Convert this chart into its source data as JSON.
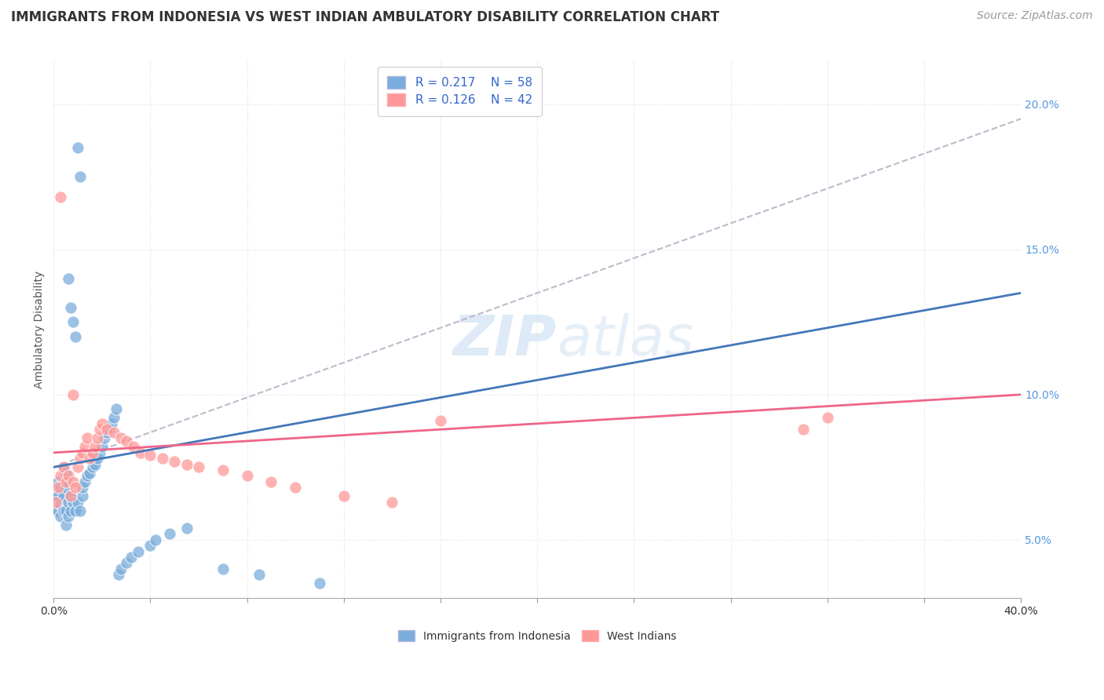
{
  "title": "IMMIGRANTS FROM INDONESIA VS WEST INDIAN AMBULATORY DISABILITY CORRELATION CHART",
  "source": "Source: ZipAtlas.com",
  "ylabel": "Ambulatory Disability",
  "xlabel": "",
  "xlim": [
    0.0,
    0.4
  ],
  "ylim": [
    0.03,
    0.215
  ],
  "xticks": [
    0.0,
    0.04,
    0.08,
    0.12,
    0.16,
    0.2,
    0.24,
    0.28,
    0.32,
    0.36,
    0.4
  ],
  "yticks_right": [
    0.05,
    0.1,
    0.15,
    0.2
  ],
  "ytick_labels_right": [
    "5.0%",
    "10.0%",
    "15.0%",
    "20.0%"
  ],
  "legend_R1": "R = 0.217",
  "legend_N1": "N = 58",
  "legend_R2": "R = 0.126",
  "legend_N2": "N = 42",
  "color_indonesia": "#7AACDC",
  "color_westindian": "#FF9999",
  "color_trendline_indonesia": "#4477BB",
  "color_trendline_westindian": "#EE6688",
  "color_trendline_gray": "#BBBBCC",
  "watermark_color": "#C8DDF0",
  "background_color": "#FFFFFF",
  "grid_color": "#DDDDDD",
  "title_fontsize": 12,
  "axis_label_fontsize": 10,
  "tick_fontsize": 10,
  "legend_fontsize": 11,
  "source_fontsize": 10,
  "indonesia_x": [
    0.001,
    0.001,
    0.002,
    0.002,
    0.002,
    0.003,
    0.003,
    0.003,
    0.004,
    0.004,
    0.004,
    0.004,
    0.005,
    0.005,
    0.005,
    0.005,
    0.006,
    0.006,
    0.006,
    0.007,
    0.007,
    0.007,
    0.008,
    0.008,
    0.009,
    0.009,
    0.01,
    0.01,
    0.011,
    0.011,
    0.012,
    0.012,
    0.013,
    0.014,
    0.015,
    0.016,
    0.017,
    0.018,
    0.019,
    0.02,
    0.021,
    0.022,
    0.023,
    0.024,
    0.025,
    0.026,
    0.027,
    0.028,
    0.03,
    0.032,
    0.035,
    0.04,
    0.042,
    0.048,
    0.055,
    0.07,
    0.085,
    0.11
  ],
  "indonesia_y": [
    0.06,
    0.065,
    0.06,
    0.065,
    0.07,
    0.058,
    0.062,
    0.068,
    0.06,
    0.065,
    0.07,
    0.075,
    0.055,
    0.06,
    0.068,
    0.073,
    0.058,
    0.063,
    0.14,
    0.06,
    0.065,
    0.13,
    0.063,
    0.125,
    0.06,
    0.12,
    0.063,
    0.185,
    0.06,
    0.175,
    0.065,
    0.068,
    0.07,
    0.072,
    0.073,
    0.075,
    0.076,
    0.078,
    0.08,
    0.082,
    0.085,
    0.087,
    0.088,
    0.09,
    0.092,
    0.095,
    0.038,
    0.04,
    0.042,
    0.044,
    0.046,
    0.048,
    0.05,
    0.052,
    0.054,
    0.04,
    0.038,
    0.035
  ],
  "westindian_x": [
    0.001,
    0.002,
    0.003,
    0.004,
    0.005,
    0.006,
    0.007,
    0.008,
    0.009,
    0.01,
    0.011,
    0.012,
    0.013,
    0.014,
    0.015,
    0.016,
    0.017,
    0.018,
    0.019,
    0.02,
    0.022,
    0.025,
    0.028,
    0.03,
    0.033,
    0.036,
    0.04,
    0.045,
    0.05,
    0.055,
    0.06,
    0.07,
    0.08,
    0.09,
    0.1,
    0.12,
    0.14,
    0.16,
    0.31,
    0.32,
    0.003,
    0.008
  ],
  "westindian_y": [
    0.063,
    0.068,
    0.072,
    0.075,
    0.07,
    0.072,
    0.065,
    0.07,
    0.068,
    0.075,
    0.078,
    0.08,
    0.082,
    0.085,
    0.078,
    0.08,
    0.082,
    0.085,
    0.088,
    0.09,
    0.088,
    0.087,
    0.085,
    0.084,
    0.082,
    0.08,
    0.079,
    0.078,
    0.077,
    0.076,
    0.075,
    0.074,
    0.072,
    0.07,
    0.068,
    0.065,
    0.063,
    0.091,
    0.088,
    0.092,
    0.168,
    0.1
  ],
  "trendline_indonesia_x0": 0.0,
  "trendline_indonesia_y0": 0.075,
  "trendline_indonesia_x1": 0.2,
  "trendline_indonesia_y1": 0.105,
  "trendline_westindian_x0": 0.0,
  "trendline_westindian_y0": 0.08,
  "trendline_westindian_x1": 0.4,
  "trendline_westindian_y1": 0.1,
  "trendline_gray_x0": 0.0,
  "trendline_gray_y0": 0.075,
  "trendline_gray_x1": 0.4,
  "trendline_gray_y1": 0.195
}
